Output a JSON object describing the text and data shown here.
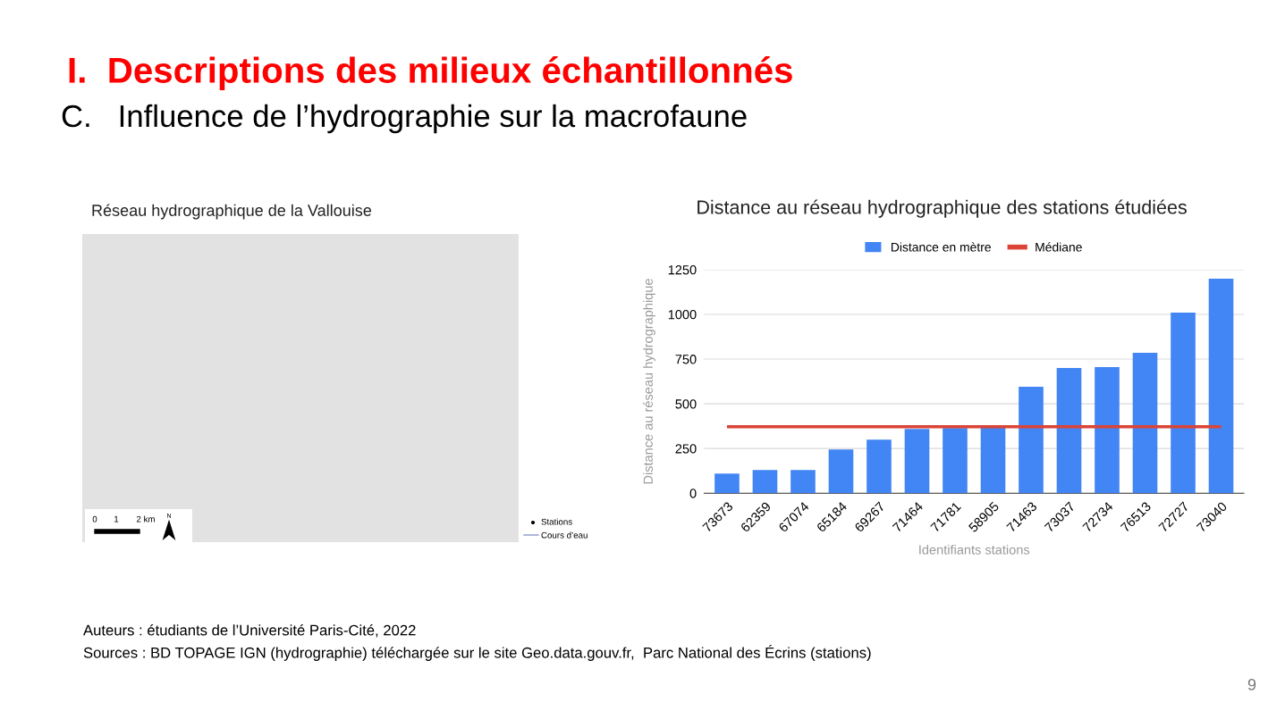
{
  "chart_data": [
    {
      "type": "other",
      "title": "I.  Descriptions des milieux échantillonnés",
      "subtitle": "C.   Influence de l’hydrographie sur la macrofaune",
      "annotations": [
        "Réseau hydrographique de la Vallouise",
        "0",
        "1",
        "2 km",
        "N",
        "Stations",
        "Cours d’eau",
        "Auteurs : étudiants de l’Université Paris-Cité, 2022",
        "Sources : BD TOPAGE IGN (hydrographie) téléchargée sur le site Geo.data.gouv.fr,  Parc National des Écrins (stations)",
        "9"
      ]
    },
    {
      "type": "bar",
      "title": "Distance au réseau hydrographique des stations étudiées",
      "xlabel": "Identifiants stations",
      "ylabel": "Distance au réseau hydrographique",
      "categories": [
        "73673",
        "62359",
        "67074",
        "65184",
        "69267",
        "71464",
        "71781",
        "58905",
        "71463",
        "73037",
        "72734",
        "76513",
        "72727",
        "73040"
      ],
      "series": [
        {
          "name": "Distance en mètre",
          "color": "#4285f4",
          "values": [
            110,
            130,
            130,
            245,
            300,
            360,
            365,
            370,
            595,
            700,
            705,
            785,
            1010,
            1200
          ]
        }
      ],
      "ref_lines": [
        {
          "axis": "y",
          "value": 372,
          "label": "Médiane",
          "color": "#db4437"
        }
      ],
      "ylim": [
        0,
        1250
      ],
      "yticks": [
        0,
        250,
        500,
        750,
        1000,
        1250
      ],
      "grid": "y",
      "legend": "top"
    }
  ]
}
